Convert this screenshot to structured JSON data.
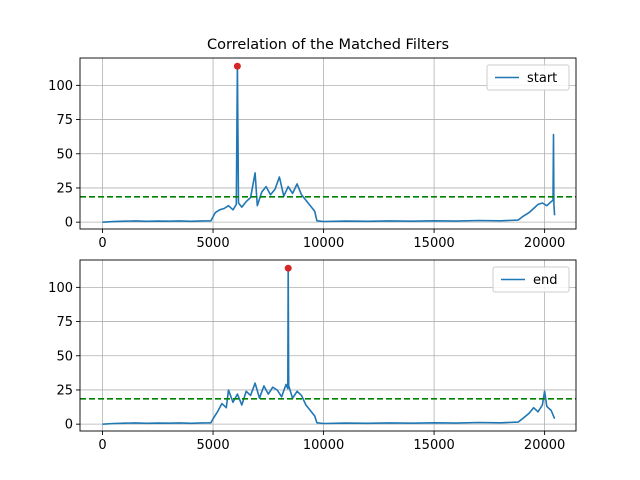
{
  "title": "Correlation of the Matched Filters",
  "colors": {
    "signal": "#1f77b4",
    "threshold": "#008000",
    "peak": "#d62728",
    "grid": "#b0b0b0"
  },
  "chart_data": [
    {
      "type": "line",
      "title": "Correlation of the Matched Filters",
      "xlabel": "",
      "ylabel": "",
      "xlim": [
        -1020,
        21420
      ],
      "ylim": [
        -5,
        120
      ],
      "xticks": [
        0,
        5000,
        10000,
        15000,
        20000
      ],
      "yticks": [
        0,
        25,
        50,
        75,
        100
      ],
      "grid": true,
      "legend_placement": "top-right",
      "series": [
        {
          "name": "start",
          "style": "line",
          "x": [
            0,
            500,
            1000,
            1500,
            2000,
            2500,
            3000,
            3500,
            4000,
            4500,
            4900,
            5000,
            5100,
            5300,
            5500,
            5700,
            5900,
            6050,
            6100,
            6150,
            6300,
            6500,
            6700,
            6900,
            7000,
            7200,
            7400,
            7600,
            7800,
            8000,
            8200,
            8400,
            8600,
            8800,
            9000,
            9200,
            9400,
            9600,
            9700,
            10000,
            11000,
            12000,
            13000,
            14000,
            15000,
            16000,
            17000,
            18000,
            18800,
            19000,
            19300,
            19500,
            19700,
            19900,
            20100,
            20300,
            20380,
            20400,
            20420,
            20450
          ],
          "y": [
            0,
            0.4,
            0.7,
            0.9,
            0.6,
            0.8,
            0.7,
            0.9,
            0.6,
            0.9,
            1.0,
            4,
            7,
            9,
            10,
            12,
            9,
            13,
            114,
            14,
            11,
            15,
            18,
            36,
            12,
            22,
            26,
            20,
            24,
            33,
            19,
            26,
            21,
            28,
            20,
            16,
            12,
            8,
            1,
            0.5,
            0.8,
            0.6,
            0.9,
            0.7,
            1.0,
            0.8,
            1.2,
            1.0,
            1.5,
            4,
            7,
            10,
            13,
            14,
            12,
            15,
            16,
            64,
            13,
            5
          ]
        },
        {
          "name": "",
          "style": "dashed-threshold",
          "x": [
            -1020,
            21420
          ],
          "y": [
            18.5,
            18.5
          ]
        },
        {
          "name": "",
          "style": "peak-marker",
          "x": [
            6100
          ],
          "y": [
            114
          ]
        }
      ]
    },
    {
      "type": "line",
      "title": "",
      "xlabel": "",
      "ylabel": "",
      "xlim": [
        -1020,
        21420
      ],
      "ylim": [
        -5,
        120
      ],
      "xticks": [
        0,
        5000,
        10000,
        15000,
        20000
      ],
      "yticks": [
        0,
        25,
        50,
        75,
        100
      ],
      "grid": true,
      "legend_placement": "top-right",
      "series": [
        {
          "name": "end",
          "style": "line",
          "x": [
            0,
            500,
            1000,
            1500,
            2000,
            2500,
            3000,
            3500,
            4000,
            4500,
            4900,
            5000,
            5200,
            5400,
            5600,
            5700,
            5900,
            6100,
            6300,
            6500,
            6700,
            6900,
            7100,
            7300,
            7500,
            7700,
            7900,
            8100,
            8300,
            8380,
            8400,
            8420,
            8600,
            8800,
            9000,
            9200,
            9400,
            9600,
            9700,
            10000,
            11000,
            12000,
            13000,
            14000,
            15000,
            16000,
            17000,
            18000,
            18800,
            19000,
            19300,
            19500,
            19700,
            19900,
            20000,
            20100,
            20300,
            20450
          ],
          "y": [
            0,
            0.5,
            0.7,
            0.9,
            0.6,
            0.8,
            0.7,
            0.9,
            0.6,
            0.9,
            1.0,
            4,
            9,
            15,
            12,
            25,
            16,
            22,
            14,
            24,
            21,
            30,
            19,
            28,
            22,
            27,
            25,
            20,
            29,
            26,
            114,
            28,
            19,
            24,
            21,
            14,
            10,
            6,
            1,
            0.5,
            0.8,
            0.6,
            0.9,
            0.7,
            1.0,
            0.8,
            1.2,
            1.0,
            1.5,
            4,
            8,
            12,
            9,
            14,
            24,
            13,
            10,
            4
          ]
        },
        {
          "name": "",
          "style": "dashed-threshold",
          "x": [
            -1020,
            21420
          ],
          "y": [
            18.5,
            18.5
          ]
        },
        {
          "name": "",
          "style": "peak-marker",
          "x": [
            8400
          ],
          "y": [
            114
          ]
        }
      ]
    }
  ]
}
